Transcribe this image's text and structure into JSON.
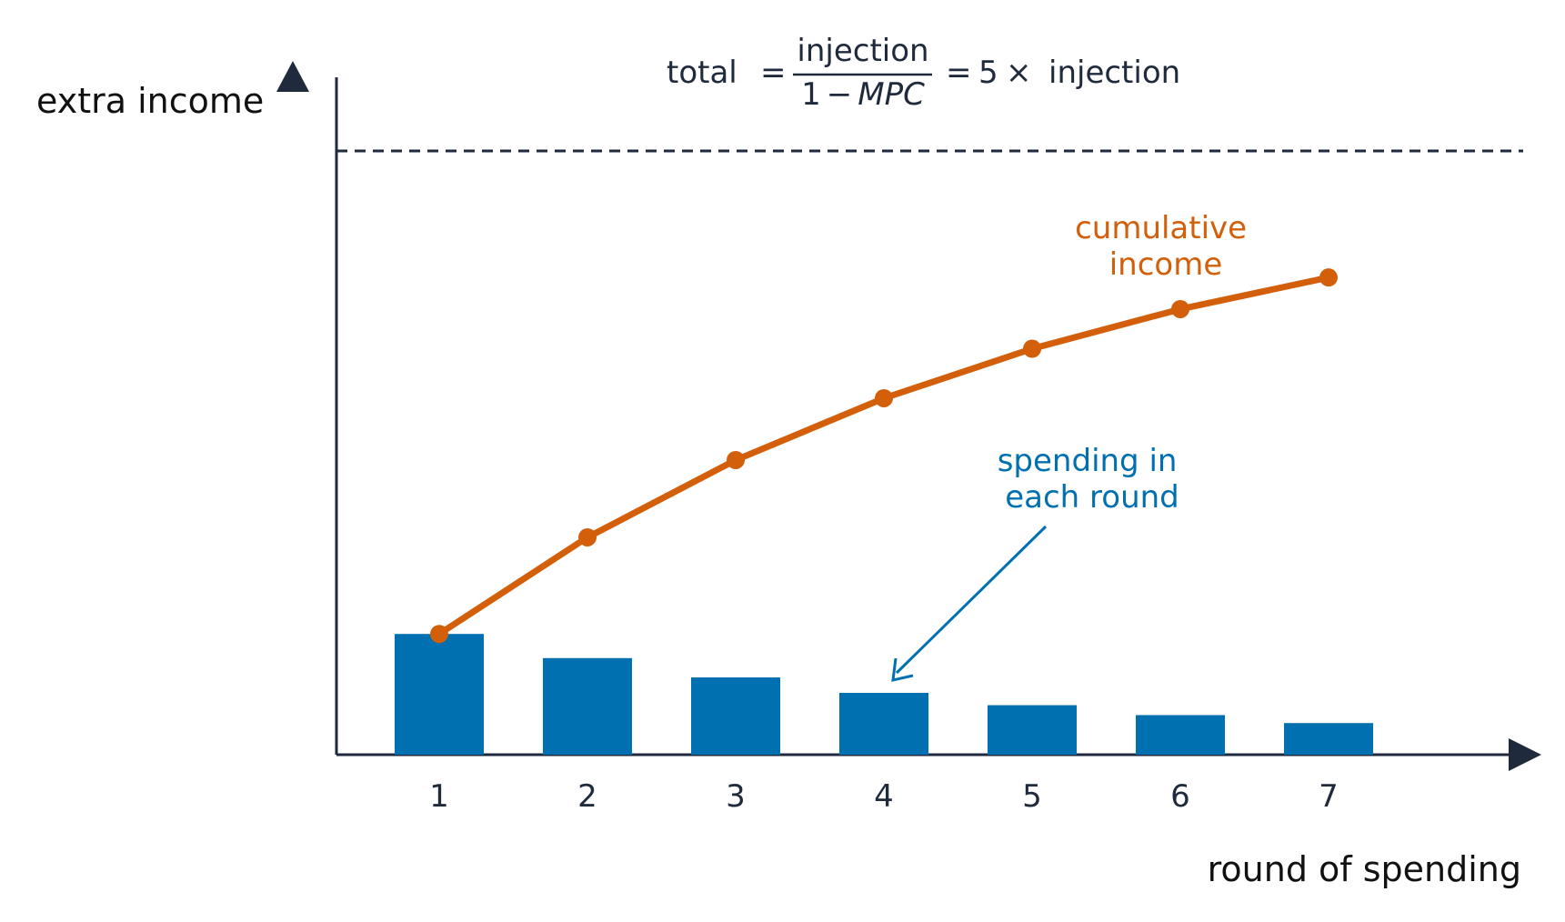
{
  "chart_data": {
    "type": "bar",
    "categories": [
      "1",
      "2",
      "3",
      "4",
      "5",
      "6",
      "7"
    ],
    "series": [
      {
        "type": "bar",
        "values": [
          1.0,
          0.8,
          0.64,
          0.512,
          0.41,
          0.328,
          0.262
        ]
      },
      {
        "type": "line",
        "values": [
          1.0,
          1.8,
          2.44,
          2.952,
          3.362,
          3.69,
          3.952
        ]
      }
    ],
    "asymptote": 5.0,
    "ylim": [
      0,
      5.1
    ],
    "xlabel": "round of spending",
    "ylabel": "extra income",
    "formula": {
      "lhs": "total",
      "eq1": "=",
      "numerator": "injection",
      "denominator_const": "1",
      "minus": "−",
      "denominator_var": "MPC",
      "eq2": "=",
      "multiplier": "5",
      "times": "×",
      "rhs": "injection"
    },
    "annotations": {
      "cumulative_line1": "cumulative",
      "cumulative_line2": "income",
      "spending_line1": "spending in",
      "spending_line2": "each round"
    },
    "colors": {
      "bar": "#0070b0",
      "line": "#d35f0a",
      "axis": "#1f2a3c",
      "dash": "#1f2a3c"
    }
  }
}
